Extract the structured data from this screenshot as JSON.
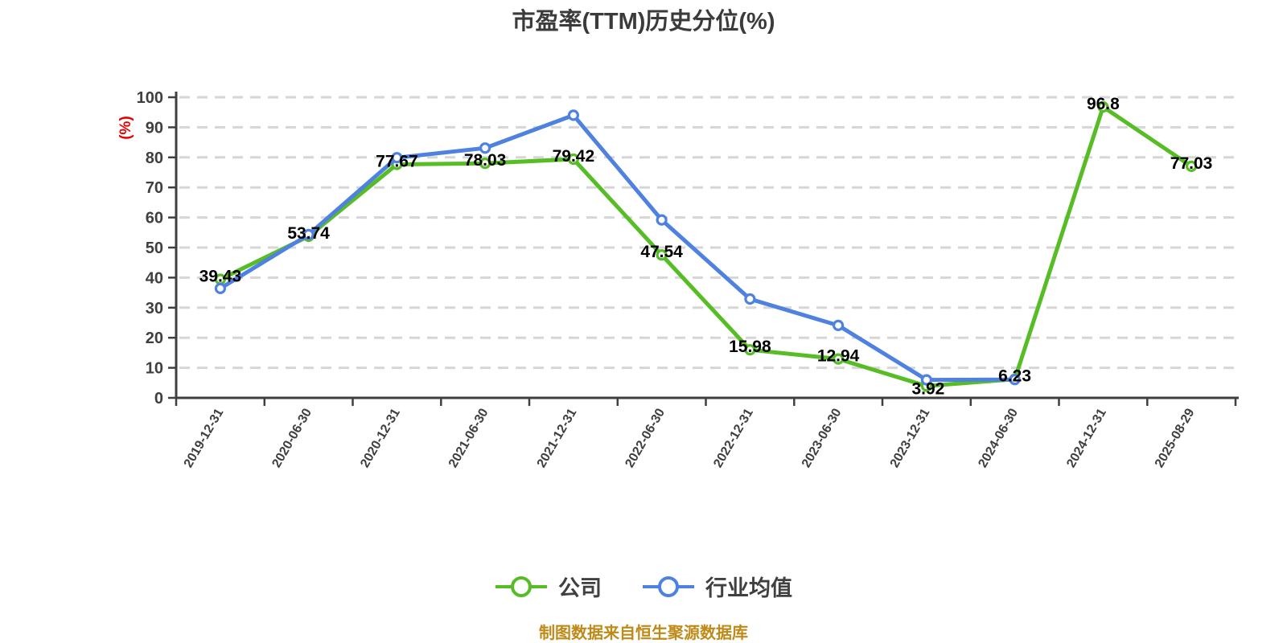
{
  "footer": {
    "source_note": "制图数据来自恒生聚源数据库",
    "color": "#bf8a17"
  },
  "chart_data": {
    "type": "line",
    "title": "市盈率(TTM)历史分位(%)",
    "xlabel": "",
    "ylabel": "(%)",
    "ylabel_color": "#e60000",
    "ylim": [
      0,
      100
    ],
    "y_tick_step": 10,
    "y_ticks": [
      0,
      10,
      20,
      30,
      40,
      50,
      60,
      70,
      80,
      90,
      100
    ],
    "grid": "horizontal-dashed",
    "grid_color": "#d6d6d6",
    "axis_color": "#3f3f3f",
    "legend_position": "bottom-center",
    "categories": [
      "2019-12-31",
      "2020-06-30",
      "2020-12-31",
      "2021-06-30",
      "2021-12-31",
      "2022-06-30",
      "2022-12-31",
      "2023-06-30",
      "2023-12-31",
      "2024-06-30",
      "2024-12-31",
      "2025-08-29"
    ],
    "series": [
      {
        "name": "公司",
        "color": "#56bd25",
        "marker": "circle",
        "marker_fill": "#ffffff",
        "point_labels_visible": true,
        "values": [
          39.43,
          53.74,
          77.67,
          78.03,
          79.42,
          47.54,
          15.98,
          12.94,
          3.92,
          6.23,
          96.8,
          77.03
        ]
      },
      {
        "name": "行业均值",
        "color": "#4f82e0",
        "marker": "circle",
        "marker_fill": "#ffffff",
        "point_labels_visible": false,
        "values": [
          36.4,
          54.3,
          79.9,
          83.1,
          94,
          59.2,
          32.9,
          24.1,
          6,
          6.1,
          null,
          null
        ]
      }
    ]
  }
}
